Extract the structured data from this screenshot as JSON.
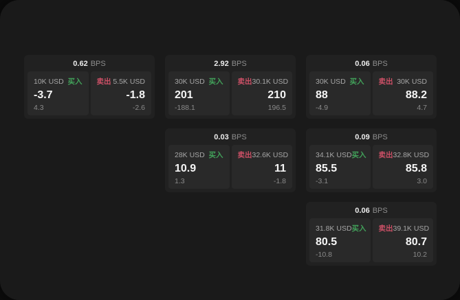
{
  "labels": {
    "bps": "BPS",
    "buy": "买入",
    "sell": "卖出"
  },
  "colors": {
    "buy_green": "#42a15a",
    "sell_red": "#cb5066",
    "panel_bg": "#1a1a1a",
    "card_bg": "#212121",
    "tile_bg": "#292929"
  },
  "cards": [
    {
      "bps_value": "0.62",
      "buy": {
        "amount": "10K USD",
        "value": "-3.7",
        "change": "4.3"
      },
      "sell": {
        "amount": "5.5K USD",
        "value": "-1.8",
        "change": "-2.6"
      }
    },
    {
      "bps_value": "2.92",
      "buy": {
        "amount": "30K USD",
        "value": "201",
        "change": "-188.1"
      },
      "sell": {
        "amount": "30.1K USD",
        "value": "210",
        "change": "196.5"
      }
    },
    {
      "bps_value": "0.06",
      "buy": {
        "amount": "30K USD",
        "value": "88",
        "change": "-4.9"
      },
      "sell": {
        "amount": "30K USD",
        "value": "88.2",
        "change": "4.7"
      }
    },
    {
      "bps_value": "0.03",
      "buy": {
        "amount": "28K USD",
        "value": "10.9",
        "change": "1.3"
      },
      "sell": {
        "amount": "32.6K USD",
        "value": "11",
        "change": "-1.8"
      }
    },
    {
      "bps_value": "0.09",
      "buy": {
        "amount": "34.1K USD",
        "value": "85.5",
        "change": "-3.1"
      },
      "sell": {
        "amount": "32.8K USD",
        "value": "85.8",
        "change": "3.0"
      }
    },
    {
      "bps_value": "0.06",
      "buy": {
        "amount": "31.8K USD",
        "value": "80.5",
        "change": "-10.8"
      },
      "sell": {
        "amount": "39.1K USD",
        "value": "80.7",
        "change": "10.2"
      }
    }
  ]
}
